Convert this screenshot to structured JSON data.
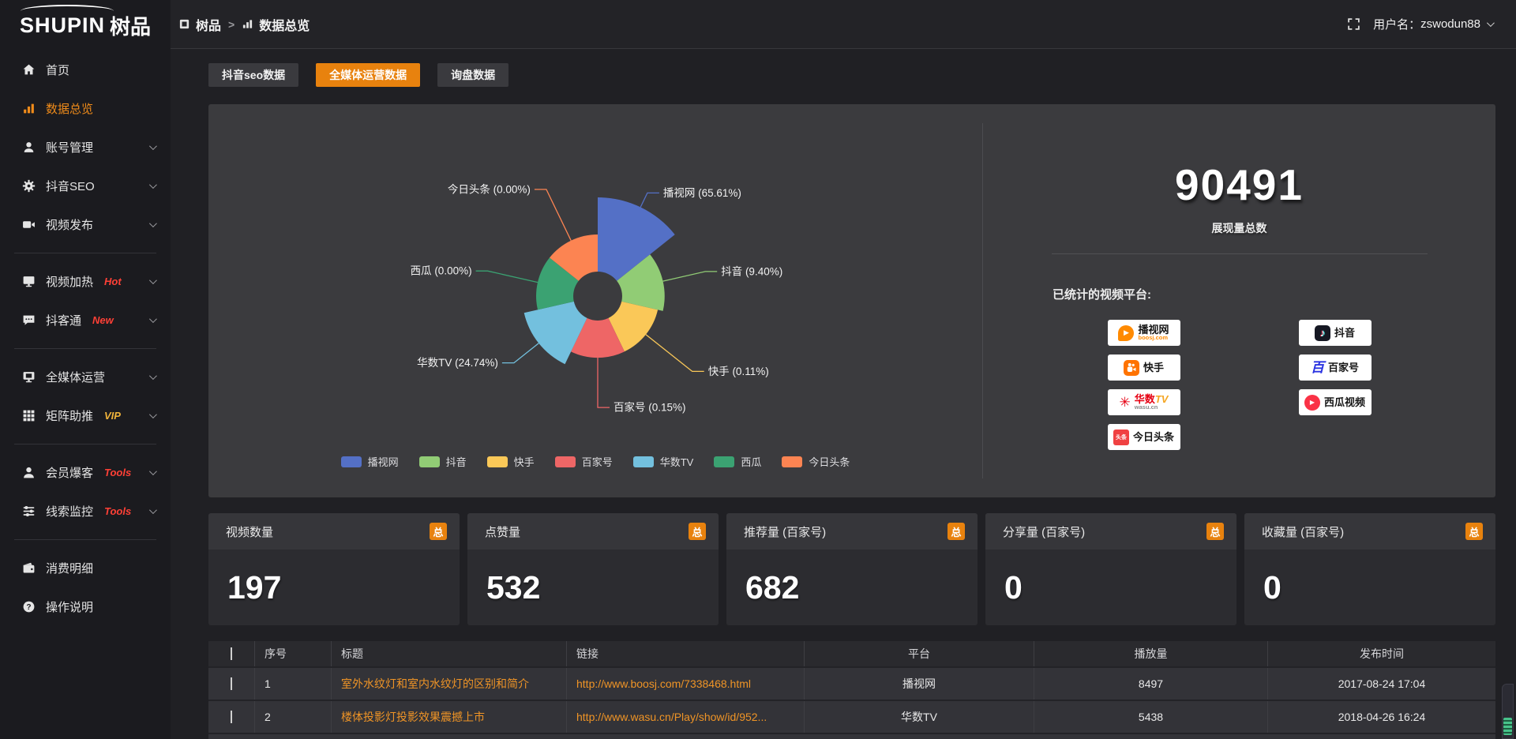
{
  "brand": {
    "name": "SHUPIN",
    "suffix": "树品"
  },
  "topbar": {
    "breadcrumb": [
      {
        "icon": "app-icon",
        "label": "树品"
      },
      {
        "icon": "bar-chart-icon",
        "label": "数据总览"
      }
    ],
    "separator": ">",
    "username_label": "用户名：",
    "username": "zswodun88"
  },
  "sidebar": {
    "items": [
      {
        "label": "首页",
        "icon": "home-icon"
      },
      {
        "label": "数据总览",
        "icon": "bar-chart-icon",
        "active": true
      },
      {
        "label": "账号管理",
        "icon": "user-icon",
        "chevron": true
      },
      {
        "label": "抖音SEO",
        "icon": "gear-icon",
        "chevron": true
      },
      {
        "label": "视频发布",
        "icon": "video-camera-icon",
        "chevron": true
      },
      {
        "divider": true
      },
      {
        "label": "视频加热",
        "icon": "screen-icon",
        "badge": "Hot",
        "badge_color": "#ff4036",
        "chevron": true
      },
      {
        "label": "抖客通",
        "icon": "chat-icon",
        "badge": "New",
        "badge_color": "#ff4036",
        "chevron": true
      },
      {
        "divider": true
      },
      {
        "label": "全媒体运营",
        "icon": "monitor-icon",
        "chevron": true
      },
      {
        "label": "矩阵助推",
        "icon": "grid-icon",
        "badge": "VIP",
        "badge_color": "#f0b33a",
        "chevron": true
      },
      {
        "divider": true
      },
      {
        "label": "会员爆客",
        "icon": "member-icon",
        "badge": "Tools",
        "badge_color": "#ff4036",
        "chevron": true
      },
      {
        "label": "线索监控",
        "icon": "sliders-icon",
        "badge": "Tools",
        "badge_color": "#ff4036",
        "chevron": true
      },
      {
        "divider": true
      },
      {
        "label": "消费明细",
        "icon": "wallet-icon"
      },
      {
        "label": "操作说明",
        "icon": "question-icon"
      }
    ]
  },
  "tabs": [
    {
      "label": "抖音seo数据",
      "active": false
    },
    {
      "label": "全媒体运营数据",
      "active": true
    },
    {
      "label": "询盘数据",
      "active": false
    }
  ],
  "chart_data": {
    "type": "pie",
    "subtype": "nightingale-rose",
    "categories": [
      "播视网",
      "抖音",
      "快手",
      "百家号",
      "华数TV",
      "西瓜",
      "今日头条"
    ],
    "values": [
      65.61,
      9.4,
      0.11,
      0.15,
      24.74,
      0,
      0
    ],
    "value_labels": [
      "65.61",
      "9.40",
      "0.11",
      "0.15",
      "24.74",
      "0.00",
      "0.00"
    ],
    "unit": "%",
    "colors": [
      "#5470c6",
      "#91cc75",
      "#fac858",
      "#ee6666",
      "#73c0de",
      "#3ba272",
      "#fc8452"
    ],
    "legend": [
      "播视网",
      "抖音",
      "快手",
      "百家号",
      "华数TV",
      "西瓜",
      "今日头条"
    ],
    "legend_position": "bottom",
    "label_format": "{name} ({value}%)",
    "title": ""
  },
  "summary": {
    "total_value": "90491",
    "total_label": "展现量总数",
    "platforms_heading": "已统计的视频平台:",
    "platform_columns": [
      [
        {
          "name": "播视网",
          "sub": "boosj.com",
          "icon": "boosj-logo"
        },
        {
          "name": "快手",
          "icon": "kuaishou-logo"
        },
        {
          "name": "华数TV",
          "sub": "wasu.cn",
          "icon": "wasu-logo"
        },
        {
          "name": "今日头条",
          "icon": "toutiao-logo"
        }
      ],
      [
        {
          "name": "抖音",
          "icon": "douyin-logo"
        },
        {
          "name": "百家号",
          "icon": "baijiahao-logo"
        },
        {
          "name": "西瓜视频",
          "icon": "xigua-logo"
        }
      ]
    ]
  },
  "stat_cards": [
    {
      "title": "视频数量",
      "badge": "总",
      "value": "197"
    },
    {
      "title": "点赞量",
      "badge": "总",
      "value": "532"
    },
    {
      "title": "推荐量 (百家号)",
      "badge": "总",
      "value": "682"
    },
    {
      "title": "分享量 (百家号)",
      "badge": "总",
      "value": "0"
    },
    {
      "title": "收藏量 (百家号)",
      "badge": "总",
      "value": "0"
    }
  ],
  "table": {
    "headers": [
      "序号",
      "标题",
      "链接",
      "平台",
      "播放量",
      "发布时间"
    ],
    "rows": [
      {
        "index": "1",
        "title": "室外水纹灯和室内水纹灯的区别和简介",
        "link": "http://www.boosj.com/7338468.html",
        "platform": "播视网",
        "views": "8497",
        "time": "2017-08-24 17:04"
      },
      {
        "index": "2",
        "title": "楼体投影灯投影效果震撼上市",
        "link": "http://www.wasu.cn/Play/show/id/952...",
        "platform": "华数TV",
        "views": "5438",
        "time": "2018-04-26 16:24"
      }
    ]
  },
  "colors": {
    "accent": "#e8820e",
    "link": "#ef9426",
    "hot": "#ff4036",
    "vip": "#f0b33a"
  }
}
